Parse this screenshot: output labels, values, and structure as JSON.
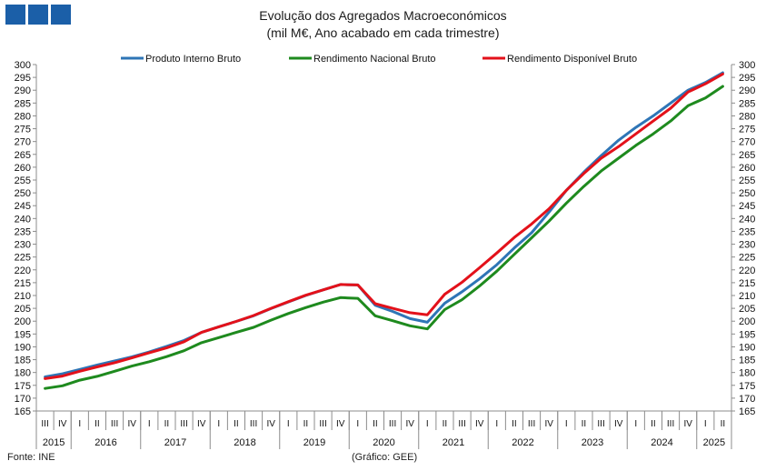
{
  "header": {
    "title": "Evolução dos Agregados Macroeconómicos",
    "subtitle": "(mil M€, Ano acabado em cada trimestre)"
  },
  "footer": {
    "source": "Fonte: INE",
    "credit": "(Gráfico: GEE)"
  },
  "colors": {
    "logo": "#1b5fa8",
    "pib": "#2e75b6",
    "rnb": "#1e8a1e",
    "rdb": "#e3111a"
  },
  "chart_data": {
    "type": "line",
    "ylim": [
      165,
      300
    ],
    "y_ticks": [
      165,
      170,
      175,
      180,
      185,
      190,
      195,
      200,
      205,
      210,
      215,
      220,
      225,
      230,
      235,
      240,
      245,
      250,
      255,
      260,
      265,
      270,
      275,
      280,
      285,
      290,
      295,
      300
    ],
    "grid": false,
    "legend_position": "top",
    "quarters": [
      "III",
      "IV",
      "I",
      "II",
      "III",
      "IV",
      "I",
      "II",
      "III",
      "IV",
      "I",
      "II",
      "III",
      "IV",
      "I",
      "II",
      "III",
      "IV",
      "I",
      "II",
      "III",
      "IV",
      "I",
      "II",
      "III",
      "IV",
      "I",
      "II",
      "III",
      "IV",
      "I",
      "II",
      "III",
      "IV",
      "I",
      "II",
      "III",
      "IV",
      "I",
      "II"
    ],
    "years": [
      {
        "label": "2015",
        "quarters": 2
      },
      {
        "label": "2016",
        "quarters": 4
      },
      {
        "label": "2017",
        "quarters": 4
      },
      {
        "label": "2018",
        "quarters": 4
      },
      {
        "label": "2019",
        "quarters": 4
      },
      {
        "label": "2020",
        "quarters": 4
      },
      {
        "label": "2021",
        "quarters": 4
      },
      {
        "label": "2022",
        "quarters": 4
      },
      {
        "label": "2023",
        "quarters": 4
      },
      {
        "label": "2024",
        "quarters": 4
      },
      {
        "label": "2025",
        "quarters": 2
      }
    ],
    "series": [
      {
        "name": "Produto Interno Bruto",
        "color": "#2e75b6",
        "values": [
          178.3,
          179.5,
          181.2,
          182.9,
          184.5,
          186.1,
          188.0,
          190.2,
          192.5,
          195.6,
          197.8,
          199.9,
          202.1,
          204.9,
          207.5,
          210.0,
          212.2,
          214.3,
          214.1,
          206.2,
          203.8,
          201.0,
          199.6,
          207.0,
          211.5,
          216.5,
          222.0,
          228.5,
          234.5,
          242.5,
          251.0,
          258.0,
          264.5,
          270.5,
          275.5,
          280.0,
          285.0,
          290.0,
          293.0,
          296.8
        ]
      },
      {
        "name": "Rendimento Nacional Bruto",
        "color": "#1e8a1e",
        "values": [
          173.8,
          174.8,
          177.0,
          178.5,
          180.5,
          182.5,
          184.2,
          186.2,
          188.5,
          191.6,
          193.6,
          195.6,
          197.6,
          200.4,
          203.0,
          205.3,
          207.4,
          209.2,
          208.9,
          202.1,
          200.2,
          198.2,
          197.0,
          204.5,
          208.4,
          213.7,
          219.5,
          226.0,
          232.5,
          239.0,
          246.0,
          252.5,
          258.5,
          263.5,
          268.5,
          273.0,
          278.0,
          284.0,
          287.0,
          291.5
        ]
      },
      {
        "name": "Rendimento Disponível Bruto",
        "color": "#e3111a",
        "values": [
          177.6,
          178.6,
          180.5,
          182.2,
          183.8,
          185.7,
          187.7,
          189.6,
          192.0,
          195.6,
          197.8,
          199.9,
          202.2,
          205.0,
          207.6,
          210.1,
          212.2,
          214.3,
          214.1,
          206.8,
          205.0,
          203.3,
          202.5,
          210.5,
          215.2,
          220.8,
          226.6,
          232.6,
          237.9,
          243.8,
          251.0,
          257.5,
          263.5,
          268.0,
          273.0,
          278.0,
          283.0,
          289.3,
          292.5,
          296.3
        ]
      }
    ]
  }
}
